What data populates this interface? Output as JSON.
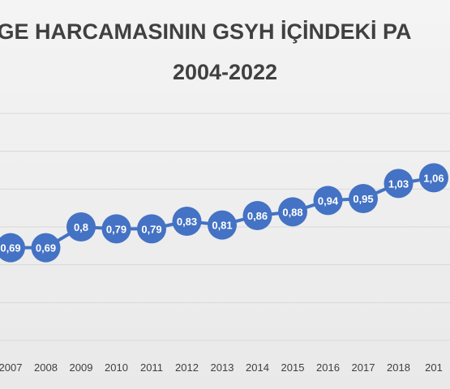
{
  "chart_data": {
    "type": "line",
    "title_line1": "-GE HARCAMASININ GSYH İÇİNDEKİ PA",
    "title_line2": "2004-2022",
    "xlabel": "",
    "ylabel": "",
    "grid": true,
    "legend": "none",
    "categories": [
      "2007",
      "2008",
      "2009",
      "2010",
      "2011",
      "2012",
      "2013",
      "2014",
      "2015",
      "2016",
      "2017",
      "2018",
      "201"
    ],
    "values": [
      0.69,
      0.69,
      0.8,
      0.79,
      0.79,
      0.83,
      0.81,
      0.86,
      0.88,
      0.94,
      0.95,
      1.03,
      1.06
    ],
    "data_labels": [
      "0,69",
      "0,69",
      "0,8",
      "0,79",
      "0,79",
      "0,83",
      "0,81",
      "0,86",
      "0,88",
      "0,94",
      "0,95",
      "1,03",
      "1,06"
    ],
    "ylim": [
      0.2,
      1.4
    ],
    "colors": {
      "line": "#4472c4",
      "marker": "#4472c4",
      "label": "#ffffff",
      "grid": "#d9d9d9",
      "tick": "#404040"
    }
  }
}
